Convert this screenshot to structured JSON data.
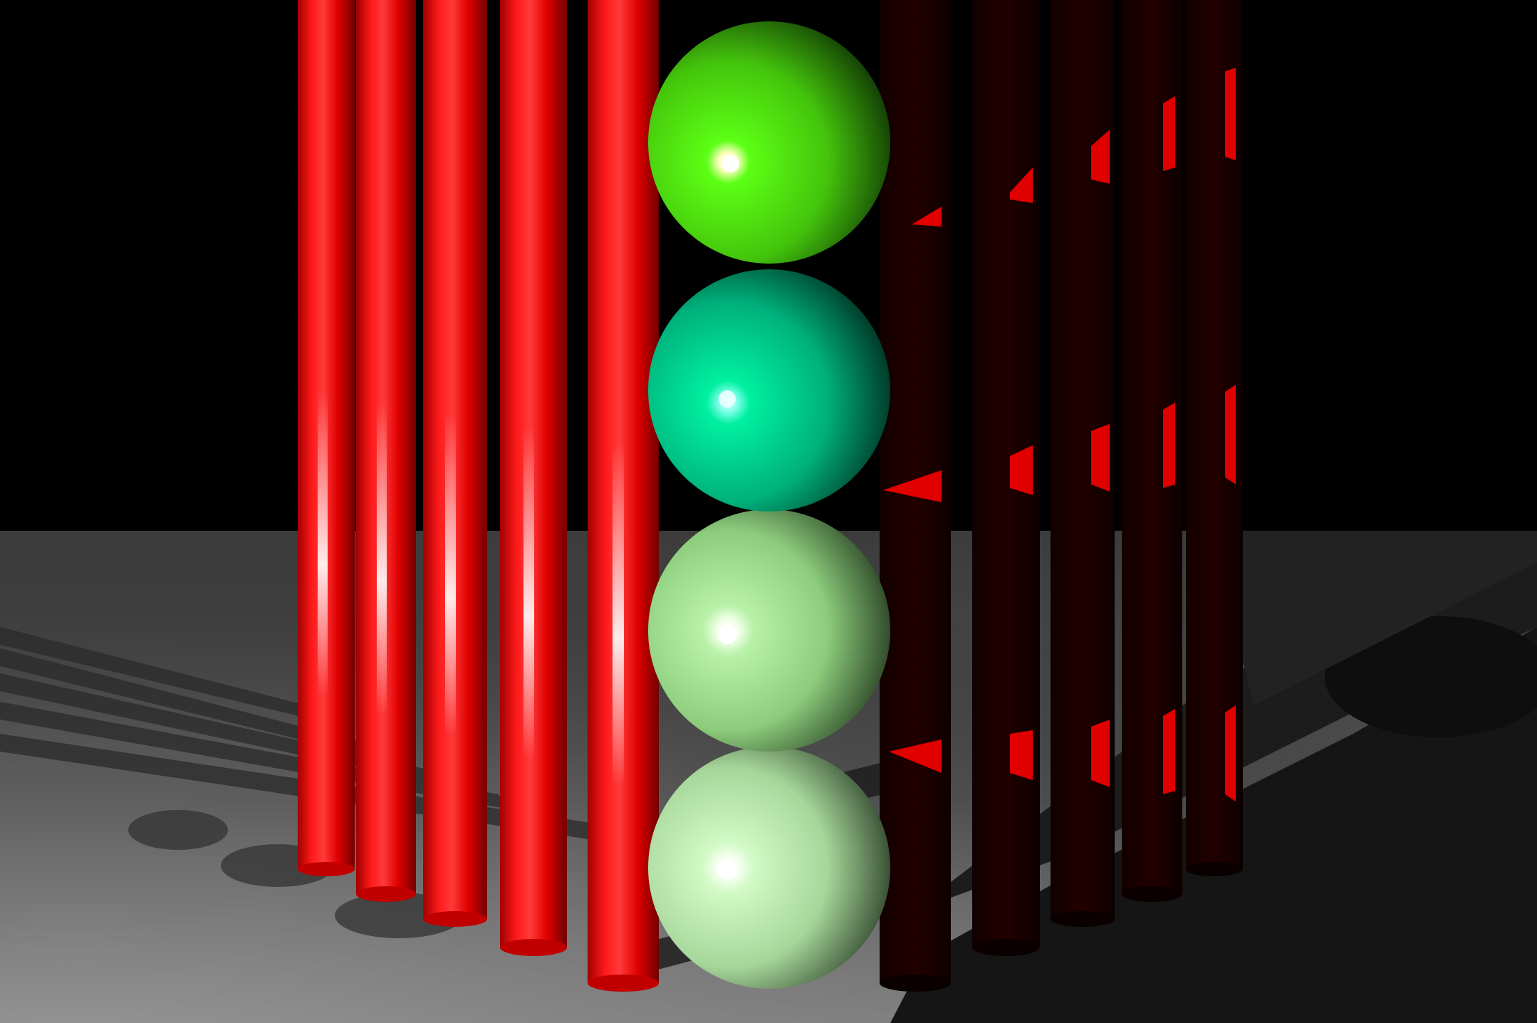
{
  "scene": {
    "background_color": "#000000",
    "floor_color_near": "#8a8a8a",
    "floor_color_far": "#3a3a3a",
    "objects": {
      "left_cylinders": {
        "count": 5,
        "color": "#ff0000",
        "lit": true
      },
      "right_cylinders": {
        "count": 5,
        "color": "#1a0000",
        "lit": false
      },
      "spheres": [
        {
          "color": "#4de60a",
          "order": 1
        },
        {
          "color": "#00d68a",
          "order": 2
        },
        {
          "color": "#a6e89a",
          "order": 3
        },
        {
          "color": "#c8f7bf",
          "order": 4
        }
      ]
    }
  }
}
